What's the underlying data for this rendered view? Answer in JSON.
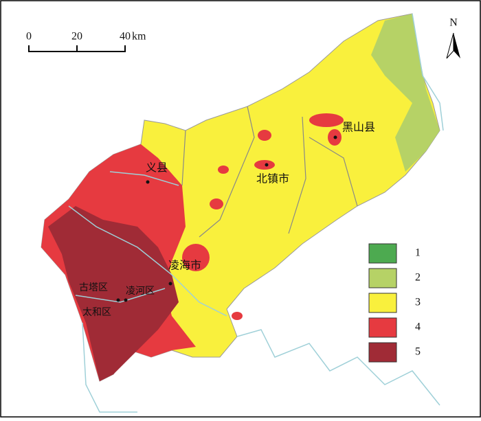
{
  "north": "N",
  "scale": {
    "ticks": [
      0,
      20,
      40
    ],
    "unit": "km"
  },
  "places": [
    "义县",
    "北镇市",
    "黑山县",
    "凌海市",
    "古塔区",
    "凌河区",
    "太和区"
  ],
  "legend": [
    {
      "label": "1",
      "color": "#4daa50"
    },
    {
      "label": "2",
      "color": "#b6d266"
    },
    {
      "label": "3",
      "color": "#f9f03d"
    },
    {
      "label": "4",
      "color": "#e63a40"
    },
    {
      "label": "5",
      "color": "#a02b36"
    }
  ]
}
